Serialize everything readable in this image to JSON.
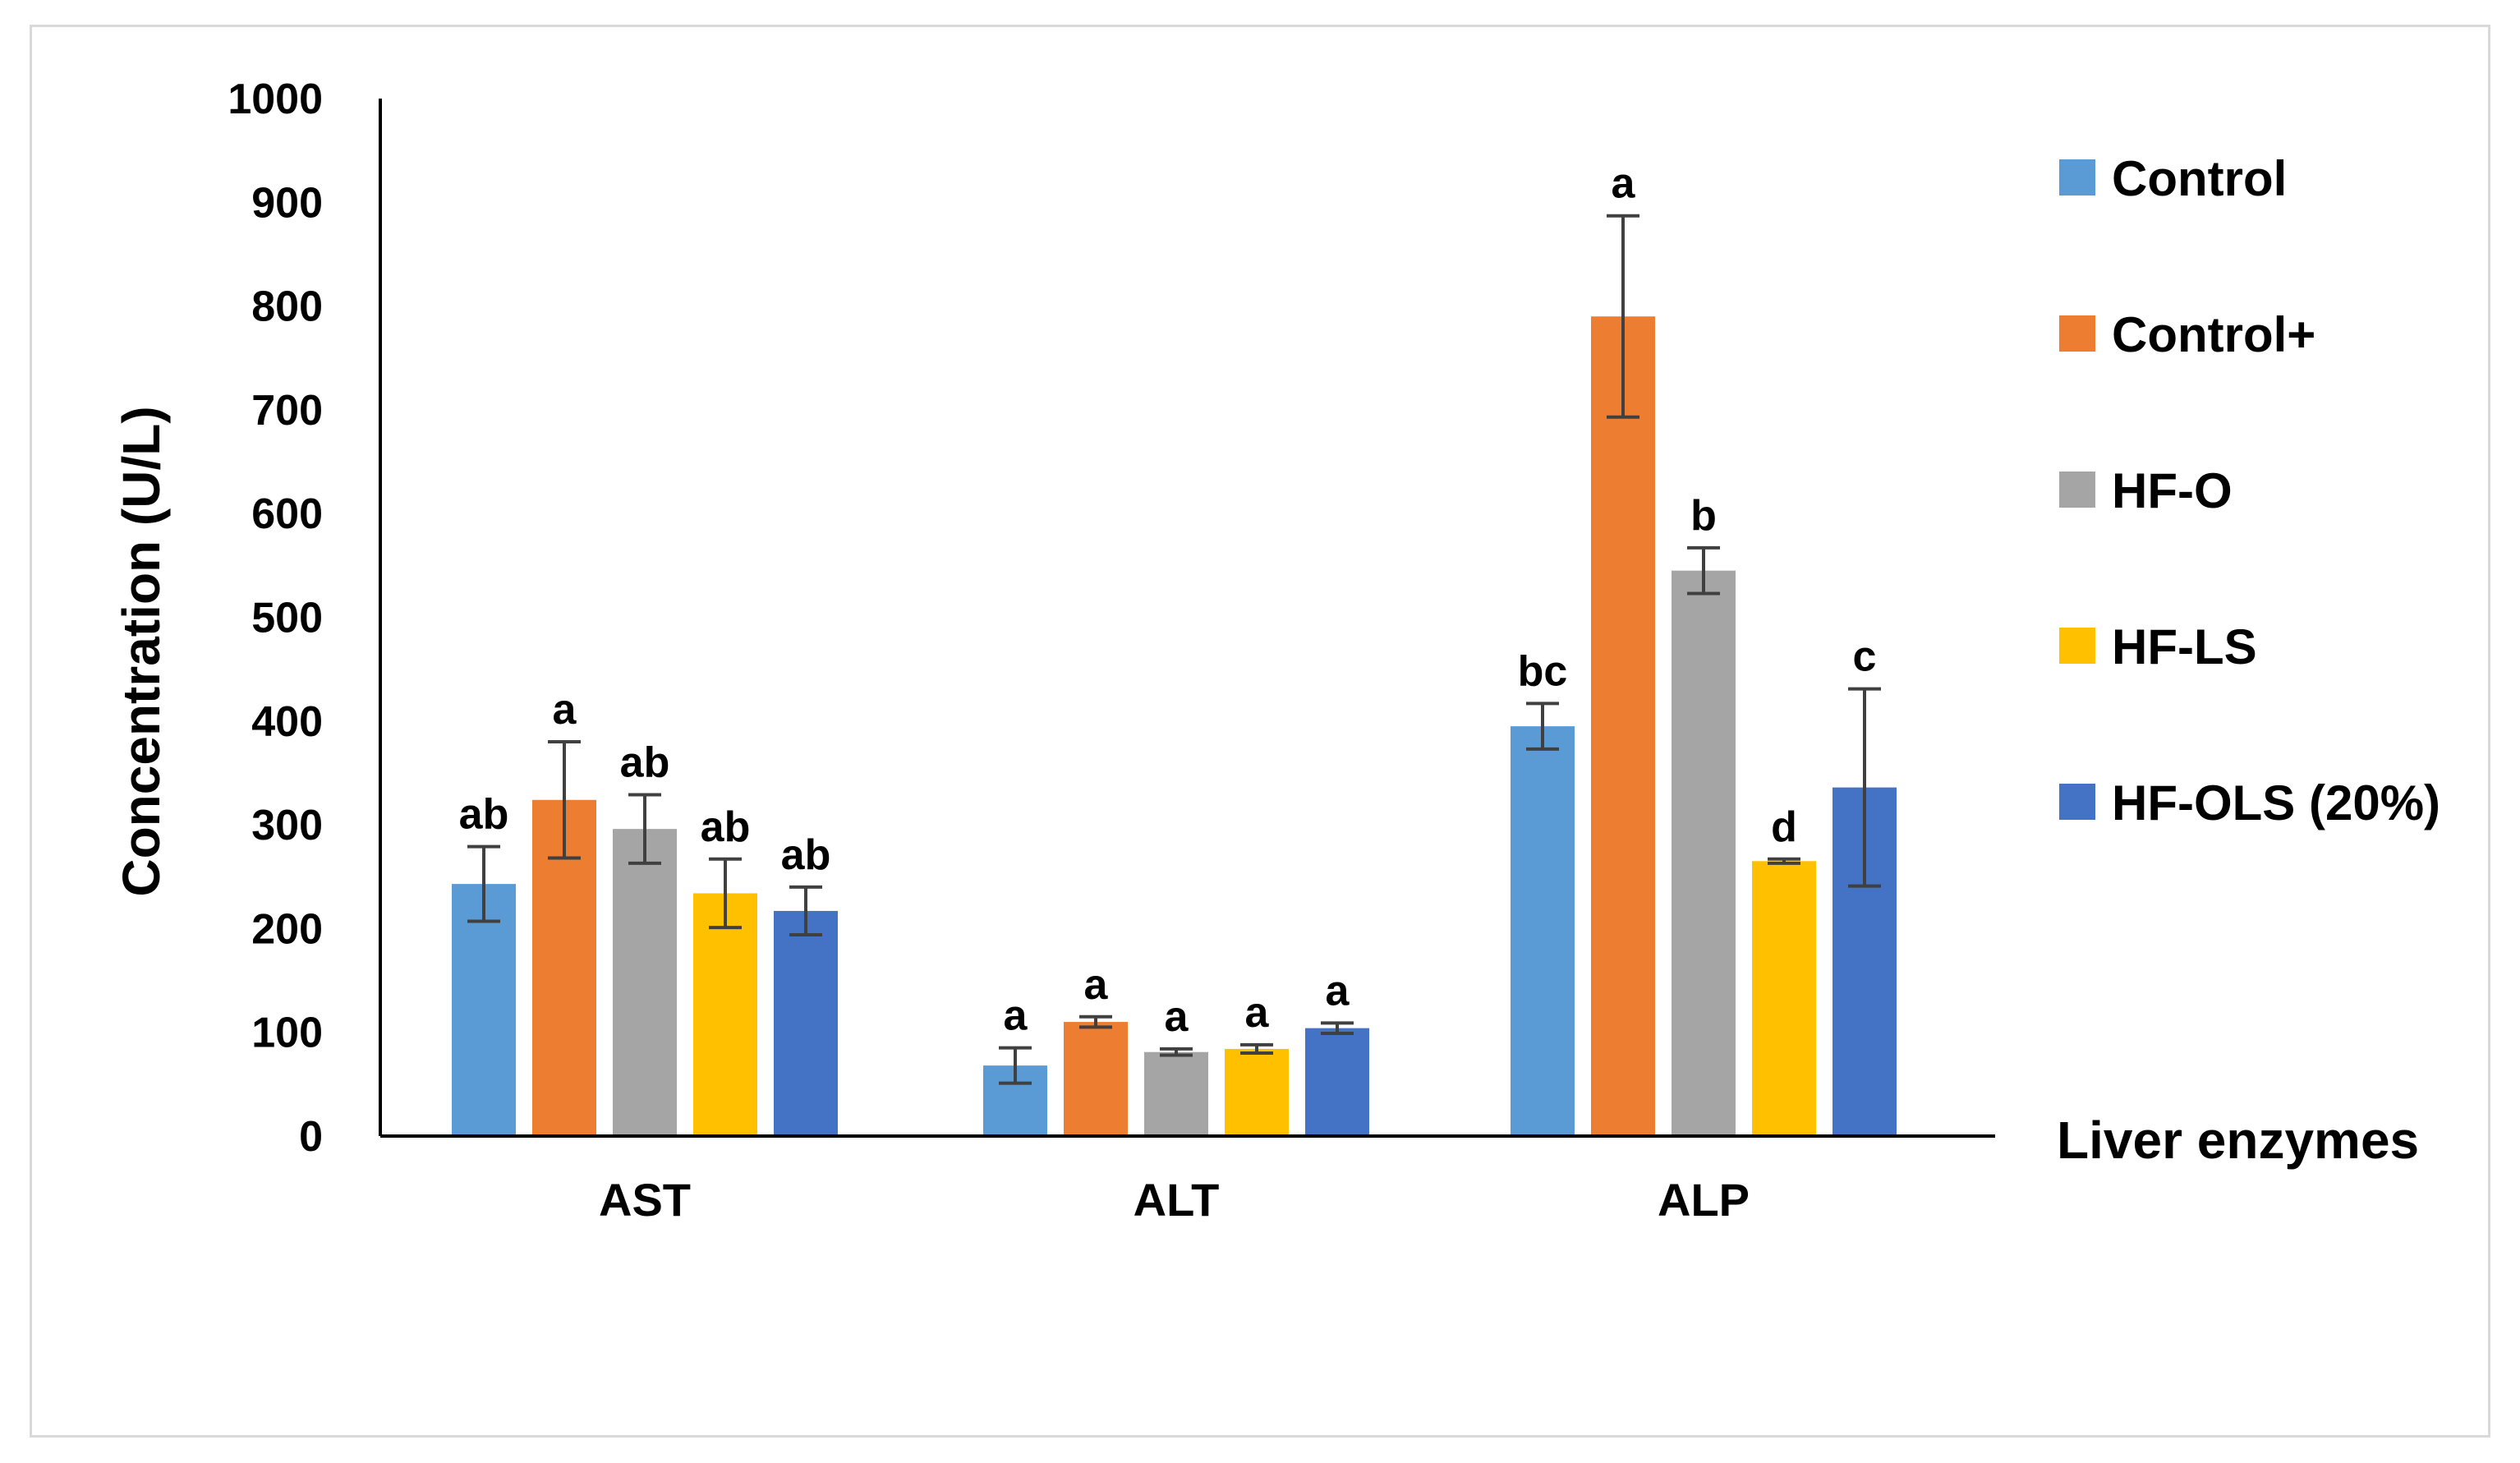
{
  "chart_data": {
    "type": "bar",
    "title": "",
    "xlabel": "Liver enzymes",
    "ylabel": "Concentration (U/L)",
    "ylim": [
      0,
      1000
    ],
    "yticks": [
      0,
      100,
      200,
      300,
      400,
      500,
      600,
      700,
      800,
      900,
      1000
    ],
    "categories": [
      "AST",
      "ALT",
      "ALP"
    ],
    "legend_position": "right",
    "series": [
      {
        "name": "Control",
        "color": "#5B9BD5",
        "values": [
          243,
          68,
          395
        ],
        "errors": [
          36,
          17,
          22
        ],
        "labels": [
          "ab",
          "a",
          "bc"
        ]
      },
      {
        "name": "Control+",
        "color": "#ED7D31",
        "values": [
          324,
          110,
          790
        ],
        "errors": [
          56,
          5,
          97
        ],
        "labels": [
          "a",
          "a",
          "a"
        ]
      },
      {
        "name": "HF-O",
        "color": "#A5A5A5",
        "values": [
          296,
          81,
          545
        ],
        "errors": [
          33,
          3,
          22
        ],
        "labels": [
          "ab",
          "a",
          "b"
        ]
      },
      {
        "name": "HF-LS",
        "color": "#FFC000",
        "values": [
          234,
          84,
          265
        ],
        "errors": [
          33,
          4,
          2
        ],
        "labels": [
          "ab",
          "a",
          "d"
        ]
      },
      {
        "name": "HF-OLS (20%)",
        "color": "#4472C4",
        "values": [
          217,
          104,
          336
        ],
        "errors": [
          23,
          5,
          95
        ],
        "labels": [
          "ab",
          "a",
          "c"
        ]
      }
    ]
  }
}
